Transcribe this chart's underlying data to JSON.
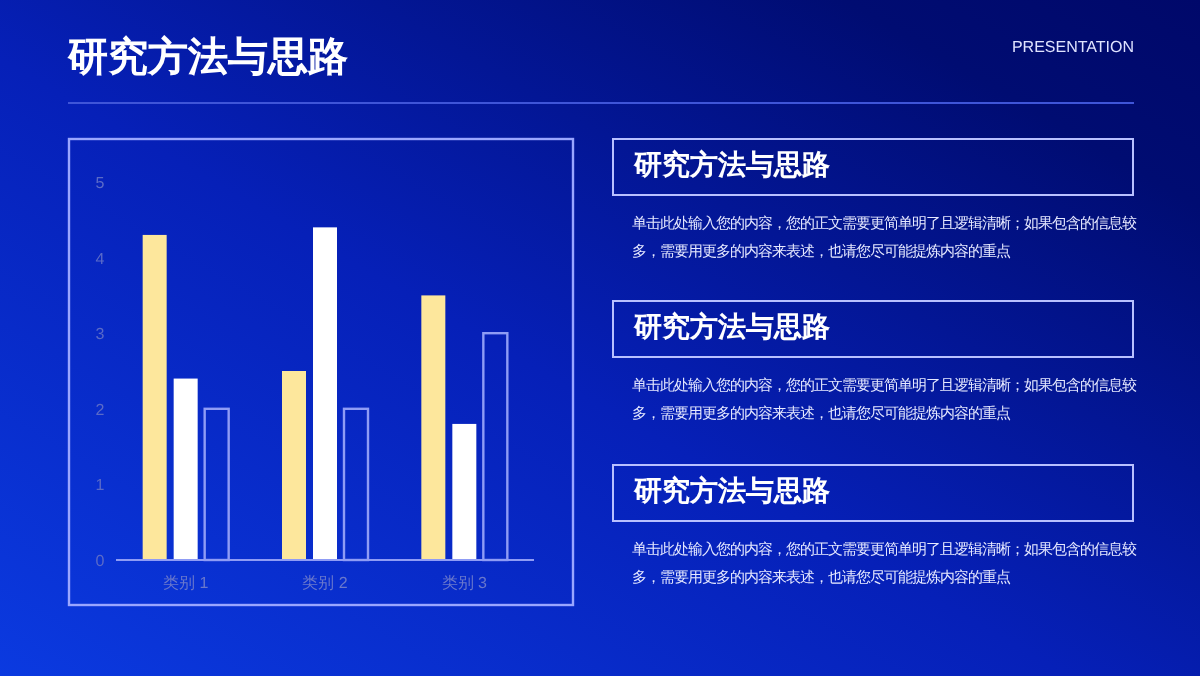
{
  "chart_data": [
    {
      "type": "bar",
      "categories": [
        "类别 1",
        "类别 2",
        "类别 3"
      ],
      "series": [
        {
          "color": "#fde79c",
          "values": [
            4.3,
            2.5,
            3.5
          ]
        },
        {
          "color": "#ffffff",
          "values": [
            2.4,
            4.4,
            1.8
          ]
        },
        {
          "color": "#8f9cf5",
          "values": [
            2,
            2,
            3
          ]
        }
      ],
      "ylim": [
        0,
        5
      ],
      "yticks": [
        0,
        1,
        2,
        3,
        4,
        5
      ],
      "grid": false
    },
    {
      "type": "other",
      "title": "研究方法与思路",
      "annotations": [
        "PRESENTATION",
        "研究方法与思路",
        "单击此处输入您的内容，您的正文需要更简单明了且逻辑清晰；如果包含的信息较多，需要用更多的内容来表述，也请您尽可能提炼内容的重点",
        "研究方法与思路",
        "单击此处输入您的内容，您的正文需要更简单明了且逻辑清晰；如果包含的信息较多，需要用更多的内容来表述，也请您尽可能提炼内容的重点",
        "研究方法与思路",
        "单击此处输入您的内容，您的正文需要更简单明了且逻辑清晰；如果包含的信息较多，需要用更多的内容来表述，也请您尽可能提炼内容的重点"
      ]
    }
  ]
}
